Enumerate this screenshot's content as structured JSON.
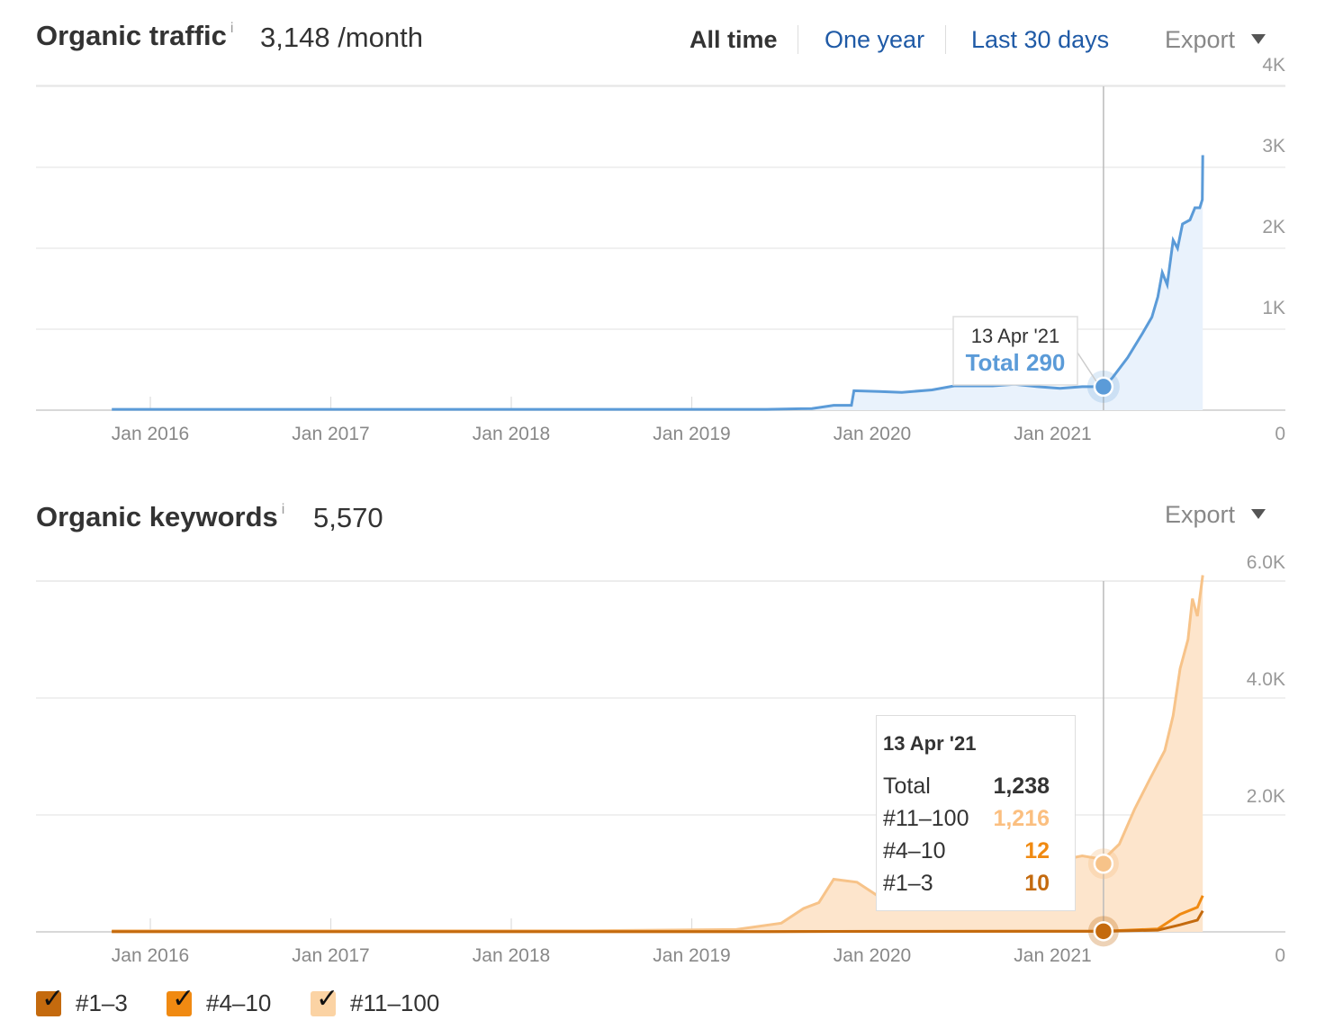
{
  "traffic": {
    "title": "Organic traffic",
    "info": "i",
    "value": "3,148 /month",
    "ranges": [
      "All time",
      "One year",
      "Last 30 days"
    ],
    "active_range": "All time",
    "export_label": "Export",
    "tooltip": {
      "date": "13 Apr '21",
      "label": "Total",
      "value": "290"
    }
  },
  "keywords": {
    "title": "Organic keywords",
    "info": "i",
    "value": "5,570",
    "export_label": "Export",
    "tooltip": {
      "date": "13 Apr '21",
      "rows": [
        {
          "label": "Total",
          "value": "1,238"
        },
        {
          "label": "#11–100",
          "value": "1,216"
        },
        {
          "label": "#4–10",
          "value": "12"
        },
        {
          "label": "#1–3",
          "value": "10"
        }
      ]
    }
  },
  "legend": [
    {
      "label": "#1–3",
      "color": "#c46a0e",
      "checked": true
    },
    {
      "label": "#4–10",
      "color": "#f08a12",
      "checked": true
    },
    {
      "label": "#11–100",
      "color": "#fbd3a4",
      "checked": true
    }
  ],
  "chart_data": [
    {
      "type": "area",
      "title": "Organic traffic",
      "x_ticks": [
        "Jan 2016",
        "Jan 2017",
        "Jan 2018",
        "Jan 2019",
        "Jan 2020",
        "Jan 2021"
      ],
      "y_ticks": [
        "0",
        "1K",
        "2K",
        "3K",
        "4K"
      ],
      "ylim": [
        0,
        4000
      ],
      "xlim": [
        "2015-07-15",
        "2021-11-01"
      ],
      "grid": true,
      "color": "#5b9bd8",
      "fill": "#e9f2fc",
      "highlight": {
        "x": "2021-04-13",
        "y": 290
      },
      "series": [
        {
          "values": [
            [
              "2015-10-15",
              10
            ],
            [
              "2016-06-01",
              10
            ],
            [
              "2017-06-01",
              10
            ],
            [
              "2018-06-01",
              10
            ],
            [
              "2019-06-01",
              10
            ],
            [
              "2019-09-01",
              20
            ],
            [
              "2019-10-15",
              60
            ],
            [
              "2019-11-20",
              60
            ],
            [
              "2019-11-25",
              240
            ],
            [
              "2020-01-15",
              230
            ],
            [
              "2020-03-01",
              220
            ],
            [
              "2020-05-01",
              250
            ],
            [
              "2020-06-15",
              300
            ],
            [
              "2020-09-01",
              300
            ],
            [
              "2020-10-15",
              320
            ],
            [
              "2020-12-01",
              290
            ],
            [
              "2021-01-15",
              270
            ],
            [
              "2021-03-01",
              290
            ],
            [
              "2021-04-13",
              290
            ],
            [
              "2021-05-01",
              400
            ],
            [
              "2021-06-01",
              650
            ],
            [
              "2021-07-01",
              950
            ],
            [
              "2021-07-20",
              1150
            ],
            [
              "2021-08-01",
              1400
            ],
            [
              "2021-08-10",
              1700
            ],
            [
              "2021-08-20",
              1550
            ],
            [
              "2021-09-01",
              2100
            ],
            [
              "2021-09-10",
              2000
            ],
            [
              "2021-09-20",
              2300
            ],
            [
              "2021-10-05",
              2350
            ],
            [
              "2021-10-15",
              2500
            ],
            [
              "2021-10-25",
              2500
            ],
            [
              "2021-10-30",
              2600
            ],
            [
              "2021-10-31",
              3150
            ]
          ]
        }
      ]
    },
    {
      "type": "area",
      "title": "Organic keywords",
      "x_ticks": [
        "Jan 2016",
        "Jan 2017",
        "Jan 2018",
        "Jan 2019",
        "Jan 2020",
        "Jan 2021"
      ],
      "y_ticks": [
        "0",
        "2.0K",
        "4.0K",
        "6.0K"
      ],
      "ylim": [
        0,
        6000
      ],
      "xlim": [
        "2015-07-15",
        "2021-11-01"
      ],
      "grid": true,
      "highlight": {
        "x": "2021-04-13",
        "total": 1238,
        "top100": 1216,
        "top10": 12,
        "top3": 10
      },
      "series": [
        {
          "name": "#11–100",
          "color": "#f7c389",
          "fill": "#fde5cc",
          "values": [
            [
              "2015-10-15",
              20
            ],
            [
              "2016-06-01",
              20
            ],
            [
              "2017-06-01",
              20
            ],
            [
              "2018-06-01",
              20
            ],
            [
              "2019-04-01",
              40
            ],
            [
              "2019-07-01",
              150
            ],
            [
              "2019-08-15",
              400
            ],
            [
              "2019-09-15",
              500
            ],
            [
              "2019-10-15",
              900
            ],
            [
              "2019-12-01",
              850
            ],
            [
              "2020-01-15",
              600
            ],
            [
              "2020-03-01",
              550
            ],
            [
              "2020-05-01",
              900
            ],
            [
              "2020-06-15",
              1000
            ],
            [
              "2020-09-01",
              1000
            ],
            [
              "2020-11-01",
              1100
            ],
            [
              "2021-01-01",
              1200
            ],
            [
              "2021-03-01",
              1300
            ],
            [
              "2021-04-13",
              1238
            ],
            [
              "2021-05-15",
              1500
            ],
            [
              "2021-06-15",
              2100
            ],
            [
              "2021-07-15",
              2600
            ],
            [
              "2021-08-15",
              3100
            ],
            [
              "2021-09-01",
              3700
            ],
            [
              "2021-09-15",
              4500
            ],
            [
              "2021-10-01",
              5000
            ],
            [
              "2021-10-10",
              5700
            ],
            [
              "2021-10-20",
              5400
            ],
            [
              "2021-10-31",
              6100
            ]
          ]
        },
        {
          "name": "#4–10",
          "color": "#f08a12",
          "values": [
            [
              "2015-10-15",
              5
            ],
            [
              "2019-06-01",
              5
            ],
            [
              "2020-01-01",
              10
            ],
            [
              "2021-04-13",
              12
            ],
            [
              "2021-08-01",
              50
            ],
            [
              "2021-09-15",
              300
            ],
            [
              "2021-10-20",
              420
            ],
            [
              "2021-10-31",
              620
            ]
          ]
        },
        {
          "name": "#1–3",
          "color": "#c46a0e",
          "values": [
            [
              "2015-10-15",
              5
            ],
            [
              "2019-06-01",
              5
            ],
            [
              "2020-01-01",
              8
            ],
            [
              "2021-04-13",
              10
            ],
            [
              "2021-08-01",
              30
            ],
            [
              "2021-09-15",
              120
            ],
            [
              "2021-10-20",
              200
            ],
            [
              "2021-10-31",
              360
            ]
          ]
        }
      ]
    }
  ]
}
